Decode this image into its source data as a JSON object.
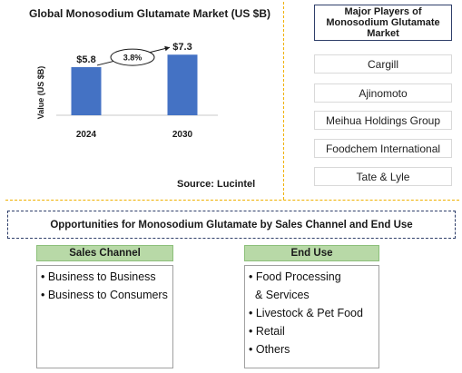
{
  "chart_data": {
    "type": "bar",
    "title": "Global Monosodium Glutamate Market (US $B)",
    "ylabel": "Value (US $B)",
    "categories": [
      "2024",
      "2030"
    ],
    "values": [
      5.8,
      7.3
    ],
    "data_labels": [
      "$5.8",
      "$7.3"
    ],
    "cagr_label": "3.8%",
    "bar_color": "#4472c4",
    "ylim": [
      0,
      8.2
    ],
    "grid": false
  },
  "source": "Source: Lucintel",
  "players": {
    "title": "Major Players of Monosodium Glutamate Market",
    "items": [
      "Cargill",
      "Ajinomoto",
      "Meihua Holdings Group",
      "Foodchem International",
      "Tate & Lyle"
    ]
  },
  "opportunities_title": "Opportunities for Monosodium Glutamate by Sales Channel and  End Use",
  "sales_channel": {
    "header": "Sales Channel",
    "items": [
      "• Business to Business",
      "• Business to Consumers"
    ]
  },
  "end_use": {
    "header": "End Use",
    "items": [
      "• Food Processing",
      "  & Services",
      "• Livestock & Pet Food",
      "• Retail",
      "• Others"
    ]
  }
}
